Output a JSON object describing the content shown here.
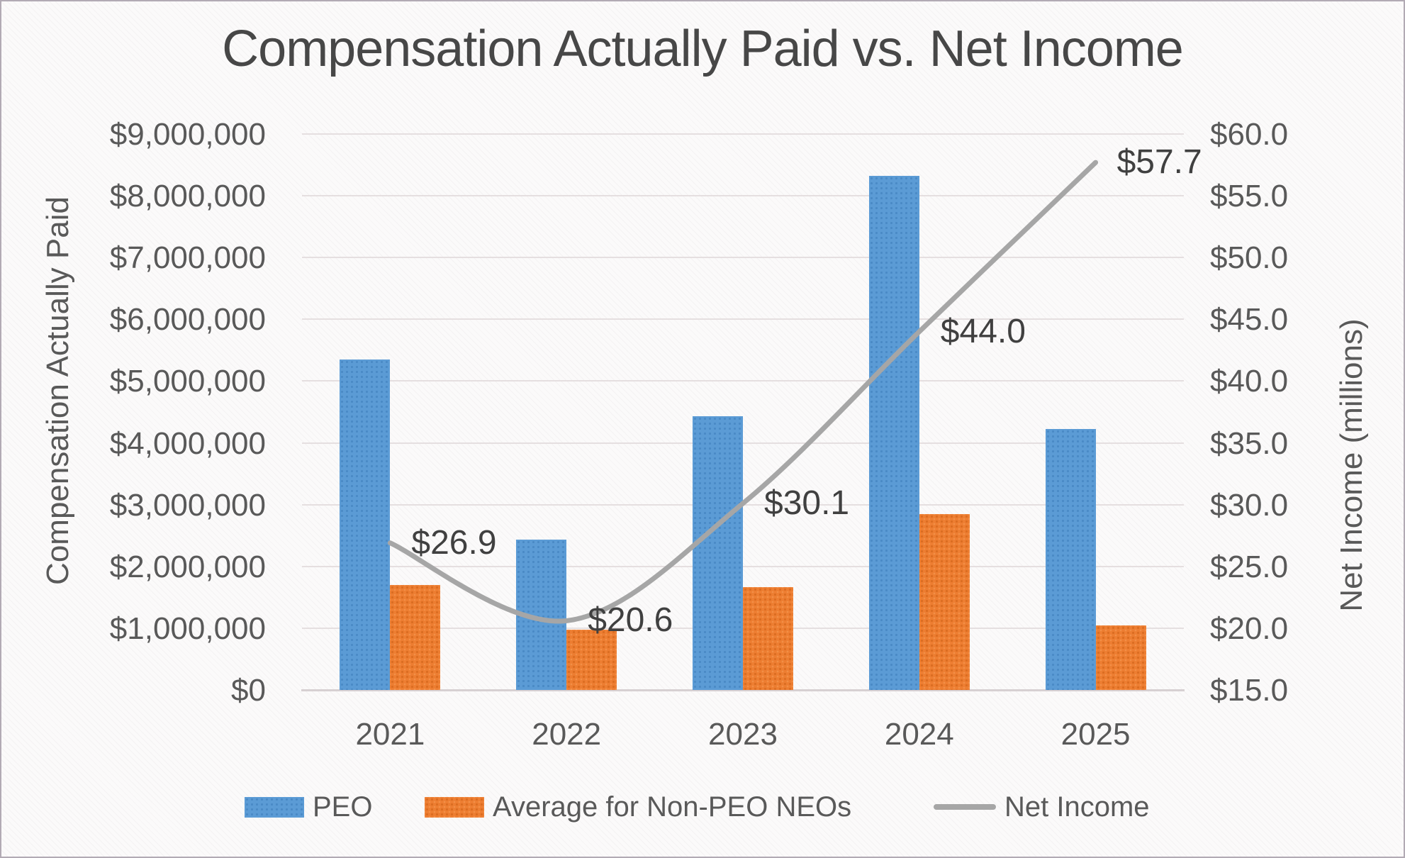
{
  "title": "Compensation Actually Paid vs. Net Income",
  "chart_data": {
    "type": "combo",
    "title": "Compensation Actually Paid vs. Net Income",
    "categories": [
      "2021",
      "2022",
      "2023",
      "2024",
      "2025"
    ],
    "series": [
      {
        "name": "PEO",
        "type": "bar",
        "axis": "left",
        "color": "#5B9BD5",
        "values": [
          5350000,
          2430000,
          4430000,
          8320000,
          4220000
        ]
      },
      {
        "name": "Average for Non-PEO NEOs",
        "type": "bar",
        "axis": "left",
        "color": "#ED7D31",
        "values": [
          1700000,
          980000,
          1670000,
          2850000,
          1040000
        ]
      },
      {
        "name": "Net Income",
        "type": "line",
        "axis": "right",
        "color": "#A6A6A6",
        "smooth": true,
        "values": [
          26.9,
          20.6,
          30.1,
          44.0,
          57.7
        ],
        "data_labels": [
          "$26.9",
          "$20.6",
          "$30.1",
          "$44.0",
          "$57.7"
        ]
      }
    ],
    "left_axis": {
      "title": "Compensation Actually Paid",
      "min": 0,
      "max": 9000000,
      "step": 1000000,
      "tick_labels": [
        "$0",
        "$1,000,000",
        "$2,000,000",
        "$3,000,000",
        "$4,000,000",
        "$5,000,000",
        "$6,000,000",
        "$7,000,000",
        "$8,000,000",
        "$9,000,000"
      ]
    },
    "right_axis": {
      "title": "Net Income (millions)",
      "min": 15,
      "max": 60,
      "step": 5,
      "tick_labels": [
        "$15.0",
        "$20.0",
        "$25.0",
        "$30.0",
        "$35.0",
        "$40.0",
        "$45.0",
        "$50.0",
        "$55.0",
        "$60.0"
      ]
    },
    "legend": {
      "position": "bottom",
      "entries": [
        "PEO",
        "Average for Non-PEO NEOs",
        "Net Income"
      ]
    },
    "grid": true
  }
}
